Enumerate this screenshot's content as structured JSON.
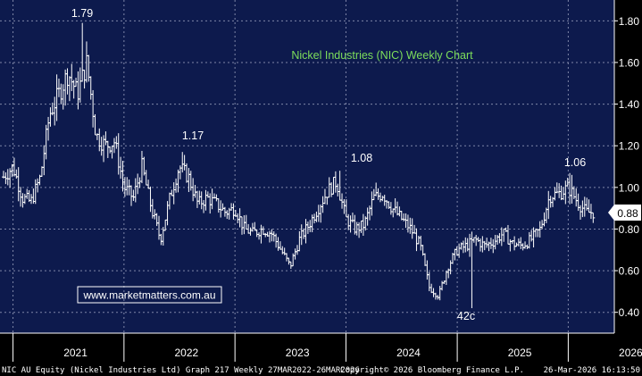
{
  "chart_data": {
    "type": "ohlc",
    "title": "Nickel Industries (NIC) Weekly Chart",
    "watermark": "www.marketmatters.com.au",
    "ylim": [
      0.3,
      1.9
    ],
    "y_ticks": [
      "1.80",
      "1.60",
      "1.40",
      "1.20",
      "1.00",
      "0.80",
      "0.60",
      "0.40"
    ],
    "x_labels": [
      "2021",
      "2022",
      "2023",
      "2024",
      "2025",
      "2026"
    ],
    "last_price": "0.88",
    "annotations": [
      {
        "text": "1.79",
        "date": "2021-08",
        "value": 1.79
      },
      {
        "text": "1.17",
        "date": "2022-07",
        "value": 1.17
      },
      {
        "text": "1.08",
        "date": "2023-12",
        "value": 1.08
      },
      {
        "text": "42c",
        "date": "2025-02",
        "value": 0.42
      },
      {
        "text": "1.06",
        "date": "2026-01",
        "value": 1.06
      }
    ],
    "footer_left": "NIC AU Equity (Nickel Industries Ltd) Graph 217 Weekly 27MAR2022-26MAR2026",
    "footer_center": "Copyright© 2026 Bloomberg Finance L.P.",
    "footer_right": "26-Mar-2026 16:13:50",
    "key_points": [
      [
        "2020-12-01",
        1.05
      ],
      [
        "2021-01-01",
        1.1
      ],
      [
        "2021-02-01",
        0.95
      ],
      [
        "2021-03-01",
        0.93
      ],
      [
        "2021-04-01",
        1.05
      ],
      [
        "2021-05-01",
        1.35
      ],
      [
        "2021-06-01",
        1.45
      ],
      [
        "2021-07-01",
        1.55
      ],
      [
        "2021-08-01",
        1.45
      ],
      [
        "2021-09-01",
        1.6
      ],
      [
        "2021-10-01",
        1.25
      ],
      [
        "2021-11-01",
        1.2
      ],
      [
        "2021-12-01",
        1.22
      ],
      [
        "2022-01-01",
        1.0
      ],
      [
        "2022-02-01",
        0.95
      ],
      [
        "2022-03-01",
        1.1
      ],
      [
        "2022-04-01",
        0.9
      ],
      [
        "2022-05-01",
        0.75
      ],
      [
        "2022-06-01",
        0.95
      ],
      [
        "2022-07-01",
        1.1
      ],
      [
        "2022-08-01",
        1.05
      ],
      [
        "2022-09-01",
        0.92
      ],
      [
        "2022-10-01",
        0.95
      ],
      [
        "2022-11-01",
        0.92
      ],
      [
        "2022-12-01",
        0.88
      ],
      [
        "2023-01-01",
        0.9
      ],
      [
        "2023-02-01",
        0.8
      ],
      [
        "2023-03-01",
        0.78
      ],
      [
        "2023-04-01",
        0.8
      ],
      [
        "2023-05-01",
        0.78
      ],
      [
        "2023-06-01",
        0.7
      ],
      [
        "2023-07-01",
        0.62
      ],
      [
        "2023-08-01",
        0.75
      ],
      [
        "2023-09-01",
        0.82
      ],
      [
        "2023-10-01",
        0.9
      ],
      [
        "2023-11-01",
        0.98
      ],
      [
        "2023-12-01",
        1.03
      ],
      [
        "2024-01-01",
        0.85
      ],
      [
        "2024-02-01",
        0.8
      ],
      [
        "2024-03-01",
        0.82
      ],
      [
        "2024-04-01",
        0.95
      ],
      [
        "2024-05-01",
        0.97
      ],
      [
        "2024-06-01",
        0.9
      ],
      [
        "2024-07-01",
        0.85
      ],
      [
        "2024-08-01",
        0.8
      ],
      [
        "2024-09-01",
        0.72
      ],
      [
        "2024-10-01",
        0.52
      ],
      [
        "2024-11-01",
        0.48
      ],
      [
        "2024-12-01",
        0.62
      ],
      [
        "2025-01-01",
        0.7
      ],
      [
        "2025-02-01",
        0.72
      ],
      [
        "2025-03-01",
        0.75
      ],
      [
        "2025-04-01",
        0.72
      ],
      [
        "2025-05-01",
        0.74
      ],
      [
        "2025-06-01",
        0.78
      ],
      [
        "2025-07-01",
        0.73
      ],
      [
        "2025-08-01",
        0.72
      ],
      [
        "2025-09-01",
        0.75
      ],
      [
        "2025-10-01",
        0.8
      ],
      [
        "2025-11-01",
        0.96
      ],
      [
        "2025-12-01",
        0.97
      ],
      [
        "2026-01-01",
        1.0
      ],
      [
        "2026-02-01",
        0.93
      ],
      [
        "2026-03-01",
        0.88
      ]
    ]
  },
  "colors": {
    "background": "#0d1a4d",
    "bars": "#ffffff",
    "title": "#7dde5b",
    "grid": "#7f86a8",
    "text": "#ffffff",
    "watermark": "#ffffff",
    "price_label_bg": "#ffffff",
    "price_label_text": "#000000"
  }
}
